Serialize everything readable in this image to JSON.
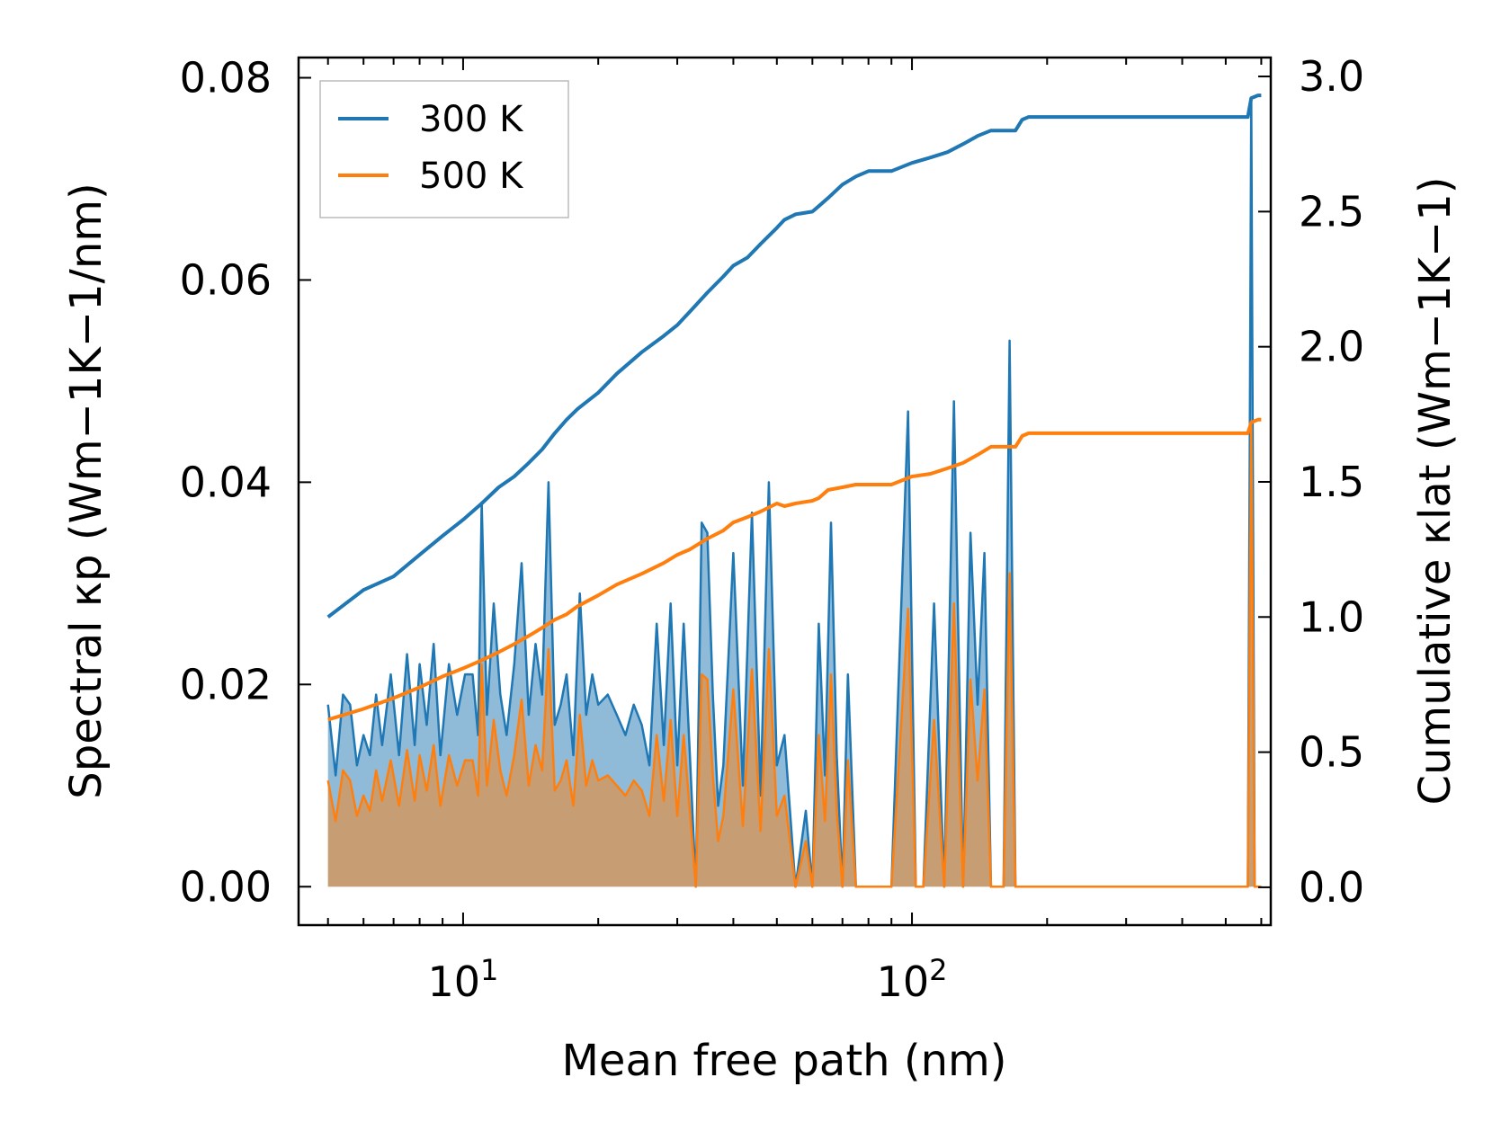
{
  "chart_data": {
    "type": "line",
    "xscale": "log",
    "xlabel": "Mean free path (nm)",
    "ylabel_left": "Spectral κp (Wm−1K−1/nm)",
    "ylabel_right": "Cumulative κlat (Wm−1K−1)",
    "xlim": [
      4.3,
      630
    ],
    "ylim_left": [
      -0.0038,
      0.082
    ],
    "ylim_right": [
      -0.14,
      3.07
    ],
    "x_ticks": [
      {
        "value": 10,
        "base": "10",
        "exp": "1"
      },
      {
        "value": 100,
        "base": "10",
        "exp": "2"
      }
    ],
    "y_left_ticks": [
      "0.00",
      "0.02",
      "0.04",
      "0.06",
      "0.08"
    ],
    "y_left_tick_values": [
      0,
      0.02,
      0.04,
      0.06,
      0.08
    ],
    "y_right_ticks": [
      "0.0",
      "0.5",
      "1.0",
      "1.5",
      "2.0",
      "2.5",
      "3.0"
    ],
    "y_right_tick_values": [
      0,
      0.5,
      1.0,
      1.5,
      2.0,
      2.5,
      3.0
    ],
    "legend": {
      "position": "top-left",
      "entries": [
        "300 K",
        "500 K"
      ]
    },
    "colors": {
      "300K": "#1f77b4",
      "500K": "#ff7f0e"
    },
    "series": [
      {
        "name": "300 K",
        "spectral": {
          "x": [
            5,
            5.2,
            5.4,
            5.6,
            5.8,
            6.0,
            6.2,
            6.4,
            6.6,
            6.9,
            7.2,
            7.5,
            7.8,
            8.0,
            8.3,
            8.6,
            8.9,
            9.3,
            9.7,
            10.1,
            10.5,
            10.8,
            11.0,
            11.3,
            11.7,
            12.1,
            12.5,
            13.0,
            13.5,
            14.0,
            14.5,
            15.0,
            15.5,
            16.0,
            16.5,
            17.0,
            17.6,
            18.2,
            18.8,
            19.4,
            20.0,
            21,
            22,
            23,
            24,
            25,
            26,
            27,
            28,
            29,
            30,
            31,
            32,
            33,
            34,
            35,
            36,
            37,
            38,
            40,
            42,
            44,
            46,
            48,
            50,
            52,
            55,
            58,
            60,
            62,
            64,
            66,
            68,
            70,
            72,
            75,
            78,
            80,
            82,
            90,
            98,
            102,
            106,
            112,
            118,
            124,
            130,
            135,
            140,
            145,
            150,
            155,
            160,
            165,
            170,
            176,
            182,
            190,
            250,
            400,
            560,
            570,
            580,
            590,
            600
          ],
          "values": [
            0.018,
            0.011,
            0.019,
            0.018,
            0.012,
            0.015,
            0.013,
            0.019,
            0.014,
            0.021,
            0.013,
            0.023,
            0.014,
            0.022,
            0.016,
            0.024,
            0.013,
            0.022,
            0.017,
            0.021,
            0.021,
            0.015,
            0.038,
            0.017,
            0.028,
            0.019,
            0.015,
            0.022,
            0.032,
            0.017,
            0.024,
            0.019,
            0.04,
            0.016,
            0.018,
            0.021,
            0.013,
            0.029,
            0.017,
            0.021,
            0.018,
            0.019,
            0.017,
            0.015,
            0.018,
            0.016,
            0.012,
            0.026,
            0.014,
            0.028,
            0.012,
            0.026,
            0.013,
            0.0,
            0.036,
            0.035,
            0.019,
            0.008,
            0.012,
            0.033,
            0.01,
            0.037,
            0.009,
            0.04,
            0.012,
            0.015,
            0.0,
            0.0075,
            0.0,
            0.026,
            0.011,
            0.036,
            0.013,
            0.0,
            0.021,
            0.0,
            0.0,
            0.0,
            0.0,
            0.0,
            0.047,
            0.0,
            0.0,
            0.028,
            0.0,
            0.048,
            0.0,
            0.035,
            0.018,
            0.033,
            0.0,
            0.0,
            0.0,
            0.054,
            0.0,
            0.0,
            0.0,
            0.0,
            0.0,
            0.0,
            0.0,
            0.078,
            0.0,
            0.0,
            0.0
          ]
        },
        "cumulative": {
          "x": [
            5,
            6,
            7,
            8,
            9,
            10,
            11,
            12,
            13,
            14,
            15,
            16,
            17,
            18,
            20,
            22,
            25,
            28,
            30,
            32,
            35,
            38,
            40,
            43,
            46,
            50,
            52,
            55,
            60,
            62,
            65,
            70,
            75,
            80,
            90,
            100,
            110,
            120,
            130,
            140,
            150,
            170,
            176,
            182,
            200,
            300,
            400,
            560,
            570,
            590,
            600
          ],
          "values": [
            1.0,
            1.1,
            1.15,
            1.23,
            1.3,
            1.36,
            1.42,
            1.48,
            1.52,
            1.57,
            1.62,
            1.68,
            1.73,
            1.77,
            1.83,
            1.9,
            1.98,
            2.04,
            2.08,
            2.13,
            2.2,
            2.26,
            2.3,
            2.33,
            2.38,
            2.44,
            2.47,
            2.49,
            2.5,
            2.52,
            2.55,
            2.6,
            2.63,
            2.65,
            2.65,
            2.68,
            2.7,
            2.72,
            2.75,
            2.78,
            2.8,
            2.8,
            2.84,
            2.85,
            2.85,
            2.85,
            2.85,
            2.85,
            2.92,
            2.93,
            2.93
          ]
        }
      },
      {
        "name": "500 K",
        "spectral": {
          "x": [
            5,
            5.2,
            5.4,
            5.6,
            5.8,
            6.0,
            6.2,
            6.4,
            6.6,
            6.9,
            7.2,
            7.5,
            7.8,
            8.0,
            8.3,
            8.6,
            8.9,
            9.3,
            9.7,
            10.1,
            10.5,
            10.8,
            11.0,
            11.3,
            11.7,
            12.1,
            12.5,
            13.0,
            13.5,
            14.0,
            14.5,
            15.0,
            15.5,
            16.0,
            16.5,
            17.0,
            17.6,
            18.2,
            18.8,
            19.4,
            20.0,
            21,
            22,
            23,
            24,
            25,
            26,
            27,
            28,
            29,
            30,
            31,
            32,
            33,
            34,
            35,
            36,
            37,
            38,
            40,
            42,
            44,
            46,
            48,
            50,
            52,
            55,
            58,
            60,
            62,
            64,
            66,
            68,
            70,
            72,
            75,
            78,
            80,
            82,
            90,
            98,
            102,
            106,
            112,
            118,
            124,
            130,
            135,
            140,
            145,
            150,
            155,
            160,
            165,
            170,
            176,
            182,
            190,
            250,
            400,
            560,
            570,
            580,
            590,
            600
          ],
          "values": [
            0.0105,
            0.0065,
            0.0115,
            0.0105,
            0.007,
            0.009,
            0.0075,
            0.0115,
            0.0085,
            0.0125,
            0.008,
            0.0135,
            0.0085,
            0.013,
            0.0095,
            0.014,
            0.008,
            0.013,
            0.01,
            0.0125,
            0.0125,
            0.009,
            0.022,
            0.01,
            0.0165,
            0.0115,
            0.009,
            0.013,
            0.0185,
            0.01,
            0.014,
            0.0115,
            0.0235,
            0.0095,
            0.0105,
            0.0125,
            0.008,
            0.017,
            0.01,
            0.0125,
            0.0105,
            0.011,
            0.01,
            0.009,
            0.0105,
            0.0095,
            0.007,
            0.015,
            0.0085,
            0.0165,
            0.007,
            0.015,
            0.0075,
            0.0,
            0.021,
            0.0205,
            0.011,
            0.0045,
            0.007,
            0.0195,
            0.006,
            0.0215,
            0.0055,
            0.0235,
            0.007,
            0.009,
            0.0,
            0.0045,
            0.0,
            0.015,
            0.0065,
            0.021,
            0.0075,
            0.0,
            0.0125,
            0.0,
            0.0,
            0.0,
            0.0,
            0.0,
            0.0275,
            0.0,
            0.0,
            0.0165,
            0.0,
            0.028,
            0.0,
            0.0205,
            0.0105,
            0.0195,
            0.0,
            0.0,
            0.0,
            0.031,
            0.0,
            0.0,
            0.0,
            0.0,
            0.0,
            0.0,
            0.0,
            0.046,
            0.0,
            0.0,
            0.0
          ]
        },
        "cumulative": {
          "x": [
            5,
            6,
            7,
            8,
            9,
            10,
            11,
            12,
            13,
            14,
            15,
            16,
            17,
            18,
            20,
            22,
            25,
            28,
            30,
            32,
            35,
            38,
            40,
            43,
            46,
            50,
            52,
            55,
            60,
            62,
            65,
            70,
            75,
            80,
            90,
            100,
            110,
            120,
            130,
            140,
            150,
            170,
            176,
            182,
            200,
            300,
            400,
            560,
            570,
            590,
            600
          ],
          "values": [
            0.62,
            0.66,
            0.7,
            0.74,
            0.78,
            0.81,
            0.84,
            0.87,
            0.9,
            0.93,
            0.96,
            0.99,
            1.01,
            1.04,
            1.08,
            1.12,
            1.16,
            1.2,
            1.23,
            1.25,
            1.29,
            1.32,
            1.35,
            1.37,
            1.39,
            1.42,
            1.41,
            1.42,
            1.43,
            1.44,
            1.47,
            1.48,
            1.49,
            1.49,
            1.49,
            1.52,
            1.53,
            1.55,
            1.57,
            1.6,
            1.63,
            1.63,
            1.67,
            1.68,
            1.68,
            1.68,
            1.68,
            1.68,
            1.72,
            1.73,
            1.73
          ]
        }
      }
    ]
  }
}
